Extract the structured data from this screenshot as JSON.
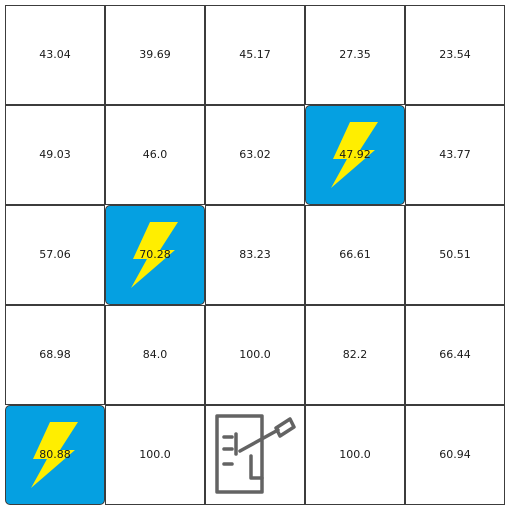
{
  "grid": {
    "rows": 5,
    "cols": 5,
    "cells": [
      [
        {
          "value": "43.04",
          "kind": "plain"
        },
        {
          "value": "39.69",
          "kind": "plain"
        },
        {
          "value": "45.17",
          "kind": "plain"
        },
        {
          "value": "27.35",
          "kind": "plain"
        },
        {
          "value": "23.54",
          "kind": "plain"
        }
      ],
      [
        {
          "value": "49.03",
          "kind": "plain"
        },
        {
          "value": "46.0",
          "kind": "plain"
        },
        {
          "value": "63.02",
          "kind": "plain"
        },
        {
          "value": "47.92",
          "kind": "charger",
          "icon": "lightning-bolt-icon"
        },
        {
          "value": "43.77",
          "kind": "plain"
        }
      ],
      [
        {
          "value": "57.06",
          "kind": "plain"
        },
        {
          "value": "70.28",
          "kind": "charger",
          "icon": "lightning-bolt-icon"
        },
        {
          "value": "83.23",
          "kind": "plain"
        },
        {
          "value": "66.61",
          "kind": "plain"
        },
        {
          "value": "50.51",
          "kind": "plain"
        }
      ],
      [
        {
          "value": "68.98",
          "kind": "plain"
        },
        {
          "value": "84.0",
          "kind": "plain"
        },
        {
          "value": "100.0",
          "kind": "plain"
        },
        {
          "value": "82.2",
          "kind": "plain"
        },
        {
          "value": "66.44",
          "kind": "plain"
        }
      ],
      [
        {
          "value": "80.88",
          "kind": "charger",
          "icon": "lightning-bolt-icon"
        },
        {
          "value": "100.0",
          "kind": "plain"
        },
        {
          "value": "",
          "kind": "station",
          "icon": "charging-station-icon"
        },
        {
          "value": "100.0",
          "kind": "plain"
        },
        {
          "value": "60.94",
          "kind": "plain"
        }
      ]
    ]
  },
  "colors": {
    "charger_fill": "#05a0e1",
    "bolt_fill": "#ffee00",
    "station_stroke": "#636363",
    "grid_line": "#3c3c3c",
    "text": "#1a1a1a"
  }
}
